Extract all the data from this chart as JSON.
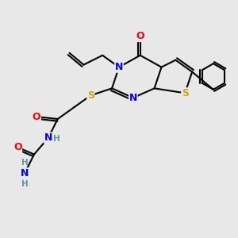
{
  "bg_color": "#e8e8e8",
  "atom_colors": {
    "C": "#000000",
    "N": "#0000ff",
    "O": "#ff0000",
    "S": "#ccaa00",
    "H": "#5a9a9a"
  },
  "bond_color": "#000000"
}
